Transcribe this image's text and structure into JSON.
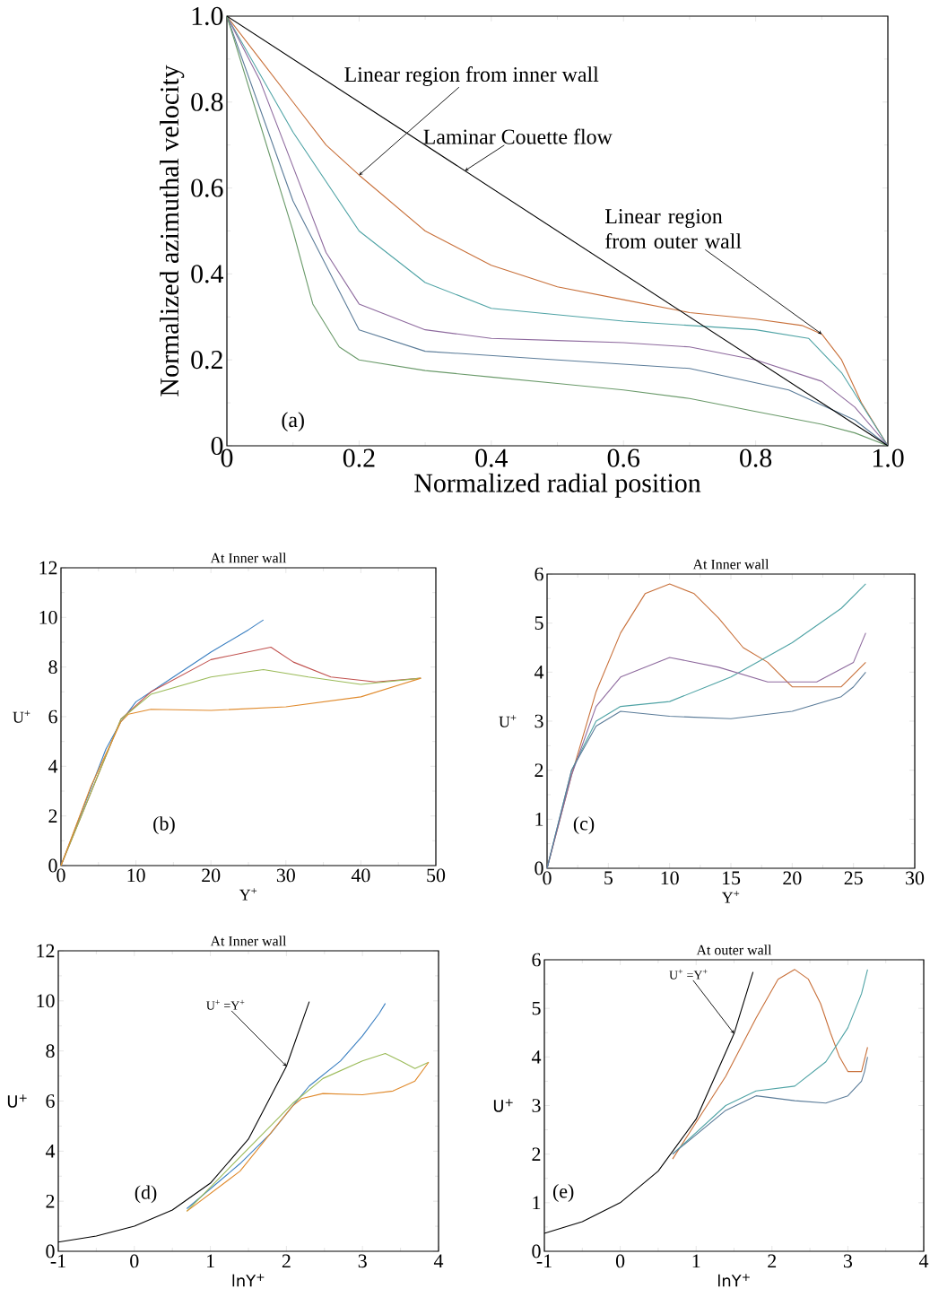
{
  "chart_data": [
    {
      "type": "line",
      "xlabel": "Normalized radial position",
      "ylabel": "Normalized azimuthal velocity",
      "xlim": [
        0,
        1
      ],
      "ylim": [
        0,
        1
      ],
      "xticks": [
        0,
        0.2,
        0.4,
        0.6,
        0.8,
        {
          "value": 1,
          "label": "1.0"
        }
      ],
      "yticks": [
        0,
        0.2,
        0.4,
        0.6,
        0.8,
        {
          "value": 1,
          "label": "1.0"
        }
      ],
      "series": [
        {
          "color": "#c8703a",
          "x": [
            0,
            0.05,
            0.1,
            0.15,
            0.2,
            0.3,
            0.4,
            0.5,
            0.6,
            0.7,
            0.8,
            0.87,
            0.9,
            0.93,
            0.96,
            1
          ],
          "values": [
            1,
            0.9,
            0.8,
            0.7,
            0.63,
            0.5,
            0.42,
            0.37,
            0.34,
            0.31,
            0.295,
            0.28,
            0.26,
            0.2,
            0.1,
            0
          ]
        },
        {
          "color": "#4fa3a5",
          "x": [
            0,
            0.1,
            0.2,
            0.3,
            0.4,
            0.6,
            0.8,
            0.88,
            0.93,
            1
          ],
          "values": [
            1,
            0.73,
            0.5,
            0.38,
            0.32,
            0.29,
            0.27,
            0.25,
            0.17,
            0
          ]
        },
        {
          "color": "#8e6a9e",
          "x": [
            0,
            0.05,
            0.1,
            0.15,
            0.2,
            0.3,
            0.4,
            0.5,
            0.6,
            0.7,
            0.8,
            0.9,
            0.95,
            1
          ],
          "values": [
            1,
            0.85,
            0.65,
            0.45,
            0.33,
            0.27,
            0.25,
            0.245,
            0.24,
            0.23,
            0.2,
            0.15,
            0.09,
            0
          ]
        },
        {
          "color": "#5b7c99",
          "x": [
            0,
            0.1,
            0.2,
            0.3,
            0.5,
            0.7,
            0.85,
            0.95,
            1
          ],
          "values": [
            1,
            0.57,
            0.27,
            0.22,
            0.2,
            0.18,
            0.13,
            0.06,
            0
          ]
        },
        {
          "color": "#6a9a6a",
          "x": [
            0,
            0.05,
            0.1,
            0.13,
            0.17,
            0.2,
            0.3,
            0.4,
            0.5,
            0.6,
            0.7,
            0.8,
            0.9,
            0.95,
            1
          ],
          "values": [
            1,
            0.75,
            0.5,
            0.33,
            0.23,
            0.2,
            0.175,
            0.16,
            0.145,
            0.13,
            0.11,
            0.08,
            0.05,
            0.03,
            0
          ]
        },
        {
          "color": "#000000",
          "x": [
            0,
            1
          ],
          "values": [
            1,
            0
          ]
        }
      ],
      "annotations": [
        {
          "text": "Linear region from inner wall",
          "x": 0.2,
          "y": 0.63
        },
        {
          "text": "Laminar Couette flow",
          "x": 0.36,
          "y": 0.64
        },
        {
          "text": "Linear region from outer wall",
          "x": 0.9,
          "y": 0.26
        },
        "(a)"
      ]
    },
    {
      "type": "line",
      "title": "At Inner wall",
      "xlabel": "Y$^{+}$",
      "ylabel": "U$^{+}$",
      "xlim": [
        0,
        50
      ],
      "ylim": [
        0,
        12
      ],
      "xticks": [
        0,
        10,
        20,
        30,
        40,
        50
      ],
      "yticks": [
        0,
        2,
        4,
        6,
        8,
        10,
        12
      ],
      "series": [
        {
          "color": "#3a7fc1",
          "x": [
            0,
            6,
            8,
            10,
            15,
            20,
            25,
            27
          ],
          "values": [
            0,
            4.7,
            5.8,
            6.6,
            7.6,
            8.6,
            9.5,
            9.9
          ]
        },
        {
          "color": "#c0504d",
          "x": [
            0,
            8,
            12,
            20,
            28,
            31,
            36,
            42,
            48
          ],
          "values": [
            0,
            5.9,
            7,
            8.3,
            8.8,
            8.2,
            7.6,
            7.4,
            7.55
          ]
        },
        {
          "color": "#9bbb59",
          "x": [
            0,
            8,
            12,
            20,
            27,
            33,
            40,
            48
          ],
          "values": [
            0,
            5.9,
            6.9,
            7.6,
            7.9,
            7.6,
            7.3,
            7.55
          ]
        },
        {
          "color": "#e08a2c",
          "x": [
            0,
            4,
            8,
            9,
            12,
            20,
            30,
            40,
            48
          ],
          "values": [
            0,
            3.2,
            5.8,
            6.1,
            6.3,
            6.25,
            6.4,
            6.8,
            7.55
          ]
        }
      ],
      "annotations": [
        "(b)"
      ]
    },
    {
      "type": "line",
      "title": "At Inner wall",
      "xlabel": "Y$^{+}$",
      "ylabel": "U$^{+}$",
      "xlim": [
        0,
        30
      ],
      "ylim": [
        0,
        6
      ],
      "xticks": [
        0,
        5,
        10,
        15,
        20,
        25,
        30
      ],
      "yticks": [
        0,
        1,
        2,
        3,
        4,
        5,
        6
      ],
      "series": [
        {
          "color": "#c8703a",
          "x": [
            0,
            2,
            4,
            6,
            8,
            10,
            12,
            14,
            16,
            18,
            20,
            24,
            26
          ],
          "values": [
            0,
            1.9,
            3.6,
            4.8,
            5.6,
            5.8,
            5.6,
            5.1,
            4.5,
            4.2,
            3.7,
            3.7,
            4.2
          ]
        },
        {
          "color": "#4fa3a5",
          "x": [
            0,
            2,
            4,
            6,
            10,
            15,
            20,
            24,
            26
          ],
          "values": [
            0,
            2,
            3,
            3.3,
            3.4,
            3.9,
            4.6,
            5.3,
            5.8
          ]
        },
        {
          "color": "#8e6a9e",
          "x": [
            0,
            2,
            4,
            6,
            10,
            14,
            18,
            22,
            25,
            26
          ],
          "values": [
            0,
            1.9,
            3.3,
            3.9,
            4.3,
            4.1,
            3.8,
            3.8,
            4.2,
            4.8
          ]
        },
        {
          "color": "#5b7c99",
          "x": [
            0,
            2,
            4,
            6,
            10,
            15,
            20,
            24,
            25,
            26
          ],
          "values": [
            0,
            2,
            2.9,
            3.2,
            3.1,
            3.05,
            3.2,
            3.5,
            3.7,
            4
          ]
        }
      ],
      "annotations": [
        "(c)"
      ]
    },
    {
      "type": "line",
      "title": "At Inner wall",
      "xlabel": "lnY$^{+}$",
      "ylabel": "U$^{+}$",
      "xlim": [
        -1,
        4
      ],
      "ylim": [
        0,
        12
      ],
      "xticks": [
        -1,
        0,
        1,
        2,
        3,
        4
      ],
      "yticks": [
        0,
        2,
        4,
        6,
        8,
        10,
        12
      ],
      "series": [
        {
          "color": "#3a7fc1",
          "x": [
            0.69,
            1.39,
            1.79,
            2.08,
            2.3,
            2.71,
            3.0,
            3.22,
            3.3
          ],
          "values": [
            1.7,
            3.5,
            4.7,
            5.8,
            6.6,
            7.6,
            8.6,
            9.5,
            9.9
          ]
        },
        {
          "color": "#9bbb59",
          "x": [
            0.69,
            2.08,
            2.48,
            3.0,
            3.3,
            3.5,
            3.69,
            3.87
          ],
          "values": [
            1.6,
            5.9,
            6.9,
            7.6,
            7.9,
            7.6,
            7.3,
            7.55
          ]
        },
        {
          "color": "#e08a2c",
          "x": [
            0.69,
            1.39,
            2.08,
            2.2,
            2.48,
            3.0,
            3.4,
            3.69,
            3.87
          ],
          "values": [
            1.6,
            3.2,
            5.8,
            6.1,
            6.3,
            6.25,
            6.4,
            6.8,
            7.55
          ]
        },
        {
          "color": "#000000",
          "x": [
            -1,
            -0.5,
            0,
            0.5,
            1,
            1.5,
            2,
            2.3
          ],
          "values": [
            0.37,
            0.61,
            1,
            1.65,
            2.72,
            4.48,
            7.39,
            9.97
          ]
        }
      ],
      "annotations": [
        {
          "text": "U$^{+}$ =Y$^{+}$",
          "x": 2,
          "y": 7.39
        },
        "(d)"
      ]
    },
    {
      "type": "line",
      "title": "At outer wall",
      "xlabel": "lnY$^{+}$",
      "ylabel": "U$^{+}$",
      "xlim": [
        -1,
        4
      ],
      "ylim": [
        0,
        6
      ],
      "xticks": [
        -1,
        0,
        1,
        2,
        3,
        4
      ],
      "yticks": [
        0,
        1,
        2,
        3,
        4,
        5,
        6
      ],
      "series": [
        {
          "color": "#c8703a",
          "x": [
            0.69,
            1.39,
            1.79,
            2.08,
            2.3,
            2.48,
            2.64,
            2.77,
            2.89,
            3.0,
            3.18,
            3.26
          ],
          "values": [
            1.9,
            3.6,
            4.8,
            5.6,
            5.8,
            5.6,
            5.1,
            4.5,
            4.0,
            3.7,
            3.7,
            4.2
          ]
        },
        {
          "color": "#4fa3a5",
          "x": [
            0.69,
            1.39,
            1.79,
            2.3,
            2.71,
            3.0,
            3.18,
            3.26
          ],
          "values": [
            2,
            3,
            3.3,
            3.4,
            3.9,
            4.6,
            5.3,
            5.8
          ]
        },
        {
          "color": "#5b7c99",
          "x": [
            0.69,
            1.39,
            1.79,
            2.3,
            2.71,
            3.0,
            3.18,
            3.22,
            3.26
          ],
          "values": [
            2,
            2.9,
            3.2,
            3.1,
            3.05,
            3.2,
            3.5,
            3.7,
            4.0
          ]
        },
        {
          "color": "#000000",
          "x": [
            -1,
            -0.5,
            0,
            0.5,
            1,
            1.5,
            1.75
          ],
          "values": [
            0.37,
            0.61,
            1,
            1.65,
            2.72,
            4.48,
            5.75
          ]
        }
      ],
      "annotations": [
        {
          "text": "U$^{+}$ =Y$^{+}$",
          "x": 1.5,
          "y": 4.48
        },
        "(e)"
      ]
    }
  ]
}
